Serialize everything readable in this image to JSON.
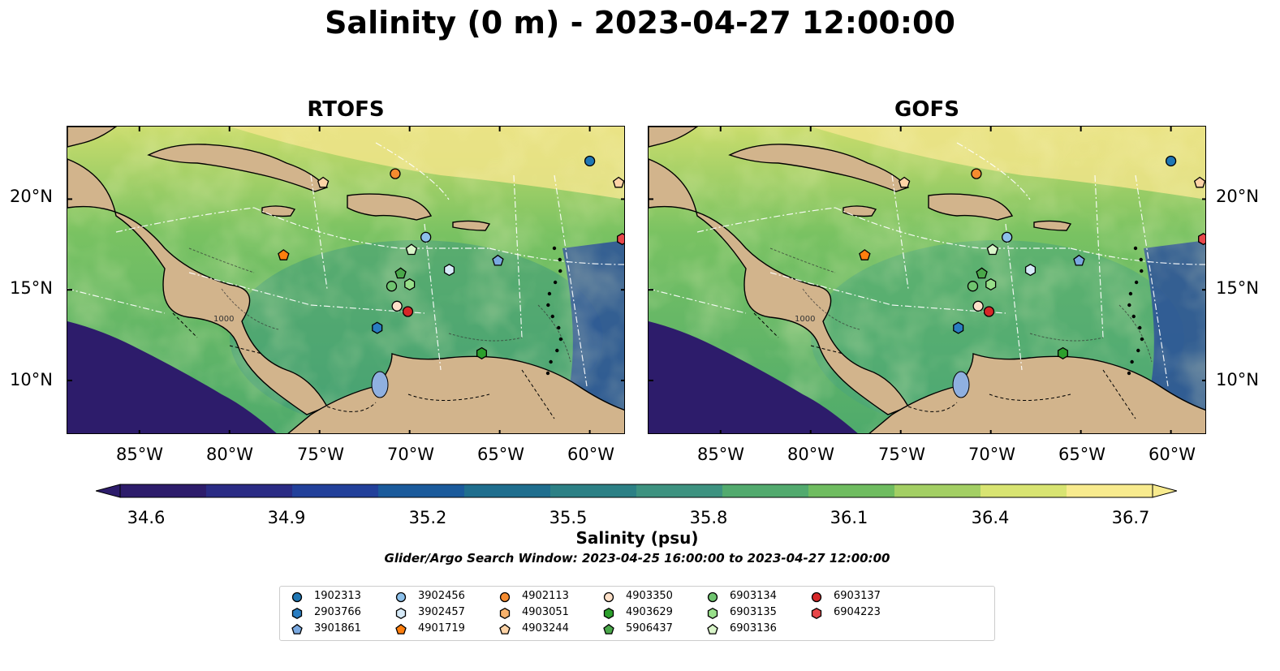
{
  "figure": {
    "title": "Salinity (0 m) - 2023-04-27 12:00:00",
    "panels": [
      "RTOFS",
      "GOFS"
    ],
    "lat_labels": [
      "20°N",
      "15°N",
      "10°N"
    ],
    "lon_labels": [
      "85°W",
      "80°W",
      "75°W",
      "70°W",
      "65°W",
      "60°W"
    ],
    "contour_label": "1000",
    "extent": {
      "lon_min": -89,
      "lon_max": -58,
      "lat_min": 7,
      "lat_max": 24
    }
  },
  "colorbar": {
    "label": "Salinity (psu)",
    "ticks": [
      "34.6",
      "34.9",
      "35.2",
      "35.5",
      "35.8",
      "36.1",
      "36.4",
      "36.7"
    ],
    "vmin": 34.6,
    "vmax": 36.7,
    "colors": [
      "#2d1c6b",
      "#2a2b84",
      "#22409a",
      "#1a5a9b",
      "#1f6e8e",
      "#2c8085",
      "#3d9280",
      "#52aa6e",
      "#6fbc60",
      "#a3cf64",
      "#d8e472",
      "#f8eb8e"
    ]
  },
  "search_window": "Glider/Argo Search Window: 2023-04-25 16:00:00 to 2023-04-27 12:00:00",
  "colors": {
    "land": "#d2b48c",
    "lake": "#8fb0e0",
    "open_ocean_deep": "#2d1c6b"
  },
  "legend": {
    "items": [
      {
        "id": "1902313",
        "marker": "circle",
        "color": "#1f77b4"
      },
      {
        "id": "2903766",
        "marker": "hexagon",
        "color": "#2a7dc1"
      },
      {
        "id": "3901861",
        "marker": "pentagon",
        "color": "#7aa9e0"
      },
      {
        "id": "3902456",
        "marker": "circle",
        "color": "#8cc0ea"
      },
      {
        "id": "3902457",
        "marker": "hexagon",
        "color": "#d6eaf8"
      },
      {
        "id": "4901719",
        "marker": "pentagon",
        "color": "#ff7f0e"
      },
      {
        "id": "4902113",
        "marker": "circle",
        "color": "#f58b2f"
      },
      {
        "id": "4903051",
        "marker": "hexagon",
        "color": "#f7b26c"
      },
      {
        "id": "4903244",
        "marker": "pentagon",
        "color": "#fdd3a6"
      },
      {
        "id": "4903350",
        "marker": "circle",
        "color": "#fde0c8"
      },
      {
        "id": "4903629",
        "marker": "hexagon",
        "color": "#2ca02c"
      },
      {
        "id": "5906437",
        "marker": "pentagon",
        "color": "#4aa84a"
      },
      {
        "id": "6903134",
        "marker": "circle",
        "color": "#6fc46f"
      },
      {
        "id": "6903135",
        "marker": "hexagon",
        "color": "#98df8a"
      },
      {
        "id": "6903136",
        "marker": "pentagon",
        "color": "#d9f5c9"
      },
      {
        "id": "6903137",
        "marker": "circle",
        "color": "#d62728"
      },
      {
        "id": "6904223",
        "marker": "hexagon",
        "color": "#e8474a"
      }
    ]
  },
  "floats": [
    {
      "id": "1902313",
      "lon": -60.0,
      "lat": 22.1
    },
    {
      "id": "2903766",
      "lon": -71.8,
      "lat": 12.9
    },
    {
      "id": "3901861",
      "lon": -65.1,
      "lat": 16.6
    },
    {
      "id": "3902456",
      "lon": -69.1,
      "lat": 17.9
    },
    {
      "id": "3902457",
      "lon": -67.8,
      "lat": 16.1
    },
    {
      "id": "4901719",
      "lon": -77.0,
      "lat": 16.9
    },
    {
      "id": "4902113",
      "lon": -70.8,
      "lat": 21.4
    },
    {
      "id": "4903051",
      "lon": -58.2,
      "lat": 17.8
    },
    {
      "id": "4903244",
      "lon": -74.8,
      "lat": 20.9
    },
    {
      "id": "4903350",
      "lon": -70.7,
      "lat": 14.1
    },
    {
      "id": "4903629",
      "lon": -66.0,
      "lat": 11.5
    },
    {
      "id": "5906437",
      "lon": -70.5,
      "lat": 15.9
    },
    {
      "id": "6903134",
      "lon": -71.0,
      "lat": 15.2
    },
    {
      "id": "6903135",
      "lon": -70.0,
      "lat": 15.3
    },
    {
      "id": "6903136",
      "lon": -69.9,
      "lat": 17.2
    },
    {
      "id": "6903137",
      "lon": -70.1,
      "lat": 13.8
    },
    {
      "id": "6904223",
      "lon": -58.2,
      "lat": 17.8
    },
    {
      "id": "4903244b",
      "lon": -58.4,
      "lat": 20.9
    }
  ]
}
